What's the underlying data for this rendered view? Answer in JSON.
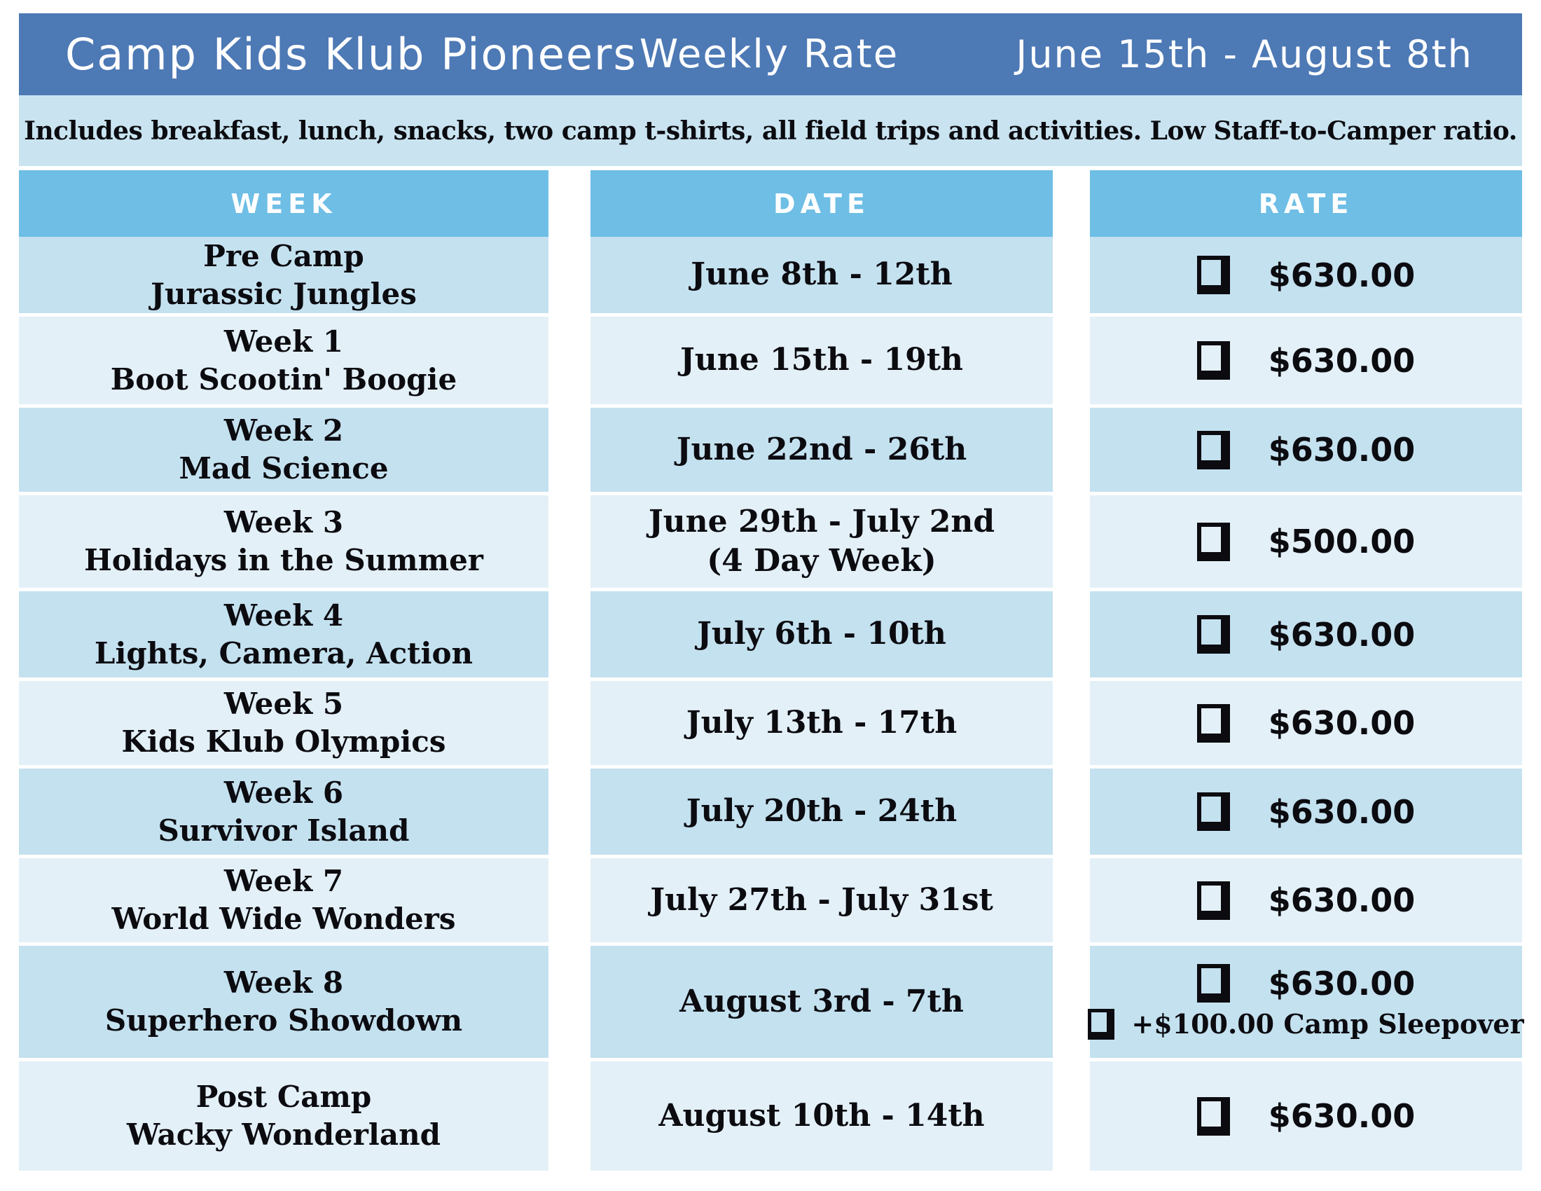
{
  "header": {
    "title": "Camp Kids Klub Pioneers",
    "center_label": "Weekly Rate",
    "date_range": "June 15th - August 8th"
  },
  "subheader": "Includes breakfast, lunch, snacks, two camp t-shirts, all field trips and activities. Low Staff-to-Camper ratio.",
  "columns": {
    "week": "WEEK",
    "date": "DATE",
    "rate": "RATE"
  },
  "rows": [
    {
      "week1": "Pre Camp",
      "week2": "Jurassic Jungles",
      "date1": "June 8th - 12th",
      "rate": "$630.00"
    },
    {
      "week1": "Week 1",
      "week2": "Boot Scootin' Boogie",
      "date1": "June 15th - 19th",
      "rate": "$630.00"
    },
    {
      "week1": "Week 2",
      "week2": "Mad Science",
      "date1": "June 22nd - 26th",
      "rate": "$630.00"
    },
    {
      "week1": "Week 3",
      "week2": "Holidays in the Summer",
      "date1": "June 29th - July 2nd",
      "date2": "(4 Day Week)",
      "rate": "$500.00"
    },
    {
      "week1": "Week 4",
      "week2": "Lights, Camera, Action",
      "date1": "July 6th - 10th",
      "rate": "$630.00"
    },
    {
      "week1": "Week 5",
      "week2": "Kids Klub Olympics",
      "date1": "July 13th - 17th",
      "rate": "$630.00"
    },
    {
      "week1": "Week 6",
      "week2": "Survivor Island",
      "date1": "July 20th - 24th",
      "rate": "$630.00"
    },
    {
      "week1": "Week 7",
      "week2": "World Wide Wonders",
      "date1": "July 27th - July 31st",
      "rate": "$630.00"
    },
    {
      "week1": "Week 8",
      "week2": "Superhero Showdown",
      "date1": "August 3rd - 7th",
      "rate": "$630.00",
      "extra": "+$100.00 Camp Sleepover"
    },
    {
      "week1": "Post Camp",
      "week2": "Wacky Wonderland",
      "date1": "August 10th - 14th",
      "rate": "$630.00"
    }
  ],
  "icons": {
    "rate_checkbox": "empty-shadowed-checkbox",
    "sleepover_checkbox": "empty-shadowed-checkbox"
  },
  "colors": {
    "header_blue": "#4d79b5",
    "subheader_bg": "#c9e4f0",
    "column_header_bg": "#6ebee5",
    "row_dark": "#c4e1ef",
    "row_light": "#e3f0f7",
    "text_dark": "#0b0b10",
    "white": "#ffffff"
  }
}
